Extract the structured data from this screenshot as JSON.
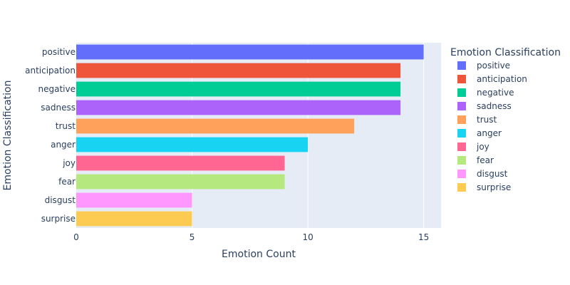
{
  "chart_data": {
    "type": "bar",
    "orientation": "horizontal",
    "xlabel": "Emotion Count",
    "ylabel": "Emotion Classification",
    "legend_title": "Emotion Classification",
    "legend_position": "right",
    "xlim": [
      0,
      15.75
    ],
    "x_ticks": [
      0,
      5,
      10,
      15
    ],
    "grid": true,
    "plot_background": "#e5ecf6",
    "series": [
      {
        "name": "positive",
        "value": 15,
        "color": "#636efa"
      },
      {
        "name": "anticipation",
        "value": 14,
        "color": "#ef553b"
      },
      {
        "name": "negative",
        "value": 14,
        "color": "#00cc96"
      },
      {
        "name": "sadness",
        "value": 14,
        "color": "#ab63fa"
      },
      {
        "name": "trust",
        "value": 12,
        "color": "#ffa15a"
      },
      {
        "name": "anger",
        "value": 10,
        "color": "#19d3f3"
      },
      {
        "name": "joy",
        "value": 9,
        "color": "#ff6692"
      },
      {
        "name": "fear",
        "value": 9,
        "color": "#b6e880"
      },
      {
        "name": "disgust",
        "value": 5,
        "color": "#ff97ff"
      },
      {
        "name": "surprise",
        "value": 5,
        "color": "#fecb52"
      }
    ]
  }
}
